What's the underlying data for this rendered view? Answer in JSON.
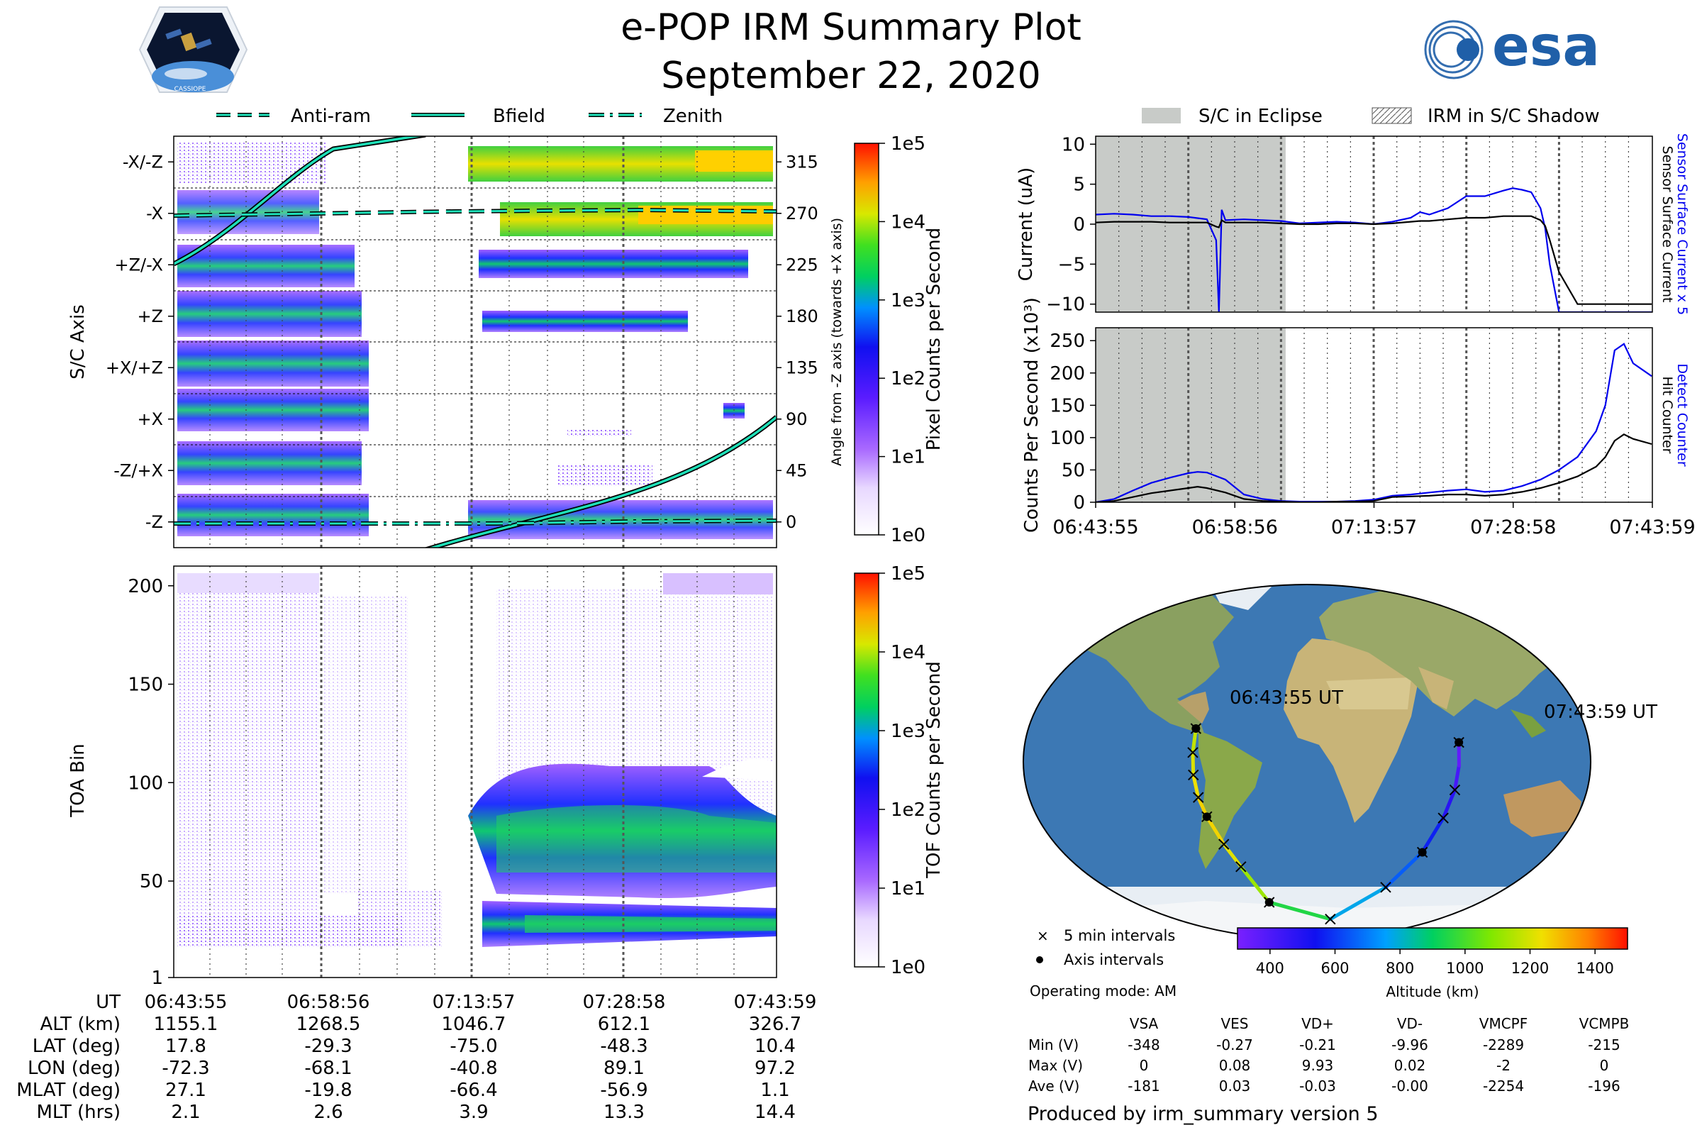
{
  "header": {
    "title": "e-POP IRM Summary Plot",
    "date": "September 22, 2020",
    "logo_left": "CASSIOPE",
    "logo_right": "esa"
  },
  "colors": {
    "teal": "#1ee0b8",
    "blue_trace": "#0000ee",
    "eclipse": "#c8cbc8"
  },
  "chart_data": [
    {
      "id": "sc-axis-spectrogram",
      "type": "heatmap",
      "ylabel": "S/C Axis",
      "ylabel_right": "Angle from -Z axis (towards +X axis)",
      "y_categories": [
        "-X/-Z",
        "-X",
        "+Z/-X",
        "+Z",
        "+X/+Z",
        "+X",
        "-Z/+X",
        "-Z"
      ],
      "y_right_ticks": [
        "315",
        "270",
        "225",
        "180",
        "135",
        "90",
        "45",
        "0"
      ],
      "x_tick_labels": [
        "06:43:55",
        "06:58:56",
        "07:13:57",
        "07:28:58",
        "07:43:59"
      ],
      "legend": [
        "Anti-ram",
        "Bfield",
        "Zenith"
      ],
      "colorbar": {
        "label": "Pixel Counts per Second",
        "ticks": [
          "1e5",
          "1e4",
          "1e3",
          "1e2",
          "1e1",
          "1e0"
        ],
        "scale": "log",
        "range": [
          1,
          100000
        ]
      }
    },
    {
      "id": "toa-spectrogram",
      "type": "heatmap",
      "ylabel": "TOA Bin",
      "y_ticks": [
        "200",
        "150",
        "100",
        "50",
        "1"
      ],
      "ylim": [
        1,
        210
      ],
      "colorbar": {
        "label": "TOF Counts per Second",
        "ticks": [
          "1e5",
          "1e4",
          "1e3",
          "1e2",
          "1e1",
          "1e0"
        ],
        "scale": "log",
        "range": [
          1,
          100000
        ]
      }
    },
    {
      "id": "current-plot",
      "type": "line",
      "ylabel": "Current (uA)",
      "y_ticks": [
        "10",
        "5",
        "0",
        "−5",
        "−10"
      ],
      "ylim": [
        -11,
        11
      ],
      "legend": [
        "S/C in Eclipse",
        "IRM in S/C Shadow"
      ],
      "right_label_blue": "Sensor Surface Current x 5",
      "right_label_black": "Sensor Surface Current",
      "eclipse_minutes": [
        0,
        20.5
      ],
      "x_minutes": [
        0,
        2,
        4,
        6,
        8,
        10,
        12,
        13,
        13.3,
        13.6,
        14,
        16,
        18,
        20,
        22,
        24,
        26,
        28,
        30,
        32,
        34,
        35,
        36,
        38,
        40,
        42,
        44,
        45,
        46,
        47,
        48,
        48.5,
        49,
        50,
        52,
        54,
        56,
        58,
        60
      ],
      "series": [
        {
          "name": "Sensor Surface Current x 5",
          "color": "#0000ee",
          "values": [
            1.2,
            1.3,
            1.2,
            1.0,
            1.0,
            0.9,
            0.6,
            -2.0,
            -11,
            1.8,
            0.5,
            0.6,
            0.5,
            0.4,
            0.1,
            0.2,
            0.3,
            0.2,
            0.0,
            0.3,
            0.8,
            1.5,
            1.2,
            2.0,
            3.5,
            3.5,
            4.2,
            4.5,
            4.3,
            4.0,
            2.0,
            -0.5,
            -5,
            -11,
            -11,
            -11,
            -11,
            -11,
            -11
          ]
        },
        {
          "name": "Sensor Surface Current",
          "color": "#000000",
          "values": [
            0.2,
            0.3,
            0.3,
            0.3,
            0.2,
            0.2,
            0.2,
            -0.3,
            -0.4,
            0.5,
            0.2,
            0.2,
            0.2,
            0.1,
            0.0,
            0.0,
            0.1,
            0.1,
            0.0,
            0.1,
            0.3,
            0.4,
            0.4,
            0.6,
            0.8,
            0.8,
            1.0,
            1.0,
            1.0,
            1.0,
            0.5,
            -0.2,
            -2.0,
            -6.0,
            -10,
            -10,
            -10,
            -10,
            -10
          ]
        }
      ]
    },
    {
      "id": "counts-plot",
      "type": "line",
      "ylabel": "Counts Per Second (x10³)",
      "y_ticks": [
        "250",
        "200",
        "150",
        "100",
        "50",
        "0"
      ],
      "ylim": [
        0,
        270
      ],
      "x_tick_labels": [
        "06:43:55",
        "06:58:56",
        "07:13:57",
        "07:28:58",
        "07:43:59"
      ],
      "right_label_blue": "Detect Counter",
      "right_label_black": "Hit Counter",
      "eclipse_minutes": [
        0,
        20.5
      ],
      "x_minutes": [
        0,
        2,
        4,
        6,
        8,
        10,
        11,
        12,
        14,
        16,
        18,
        20,
        22,
        24,
        26,
        28,
        30,
        32,
        34,
        36,
        38,
        40,
        42,
        44,
        46,
        48,
        50,
        52,
        54,
        55,
        56,
        57,
        58,
        60
      ],
      "series": [
        {
          "name": "Detect Counter",
          "color": "#0000ee",
          "values": [
            0,
            5,
            18,
            30,
            38,
            45,
            47,
            46,
            35,
            12,
            5,
            2,
            1,
            1,
            1,
            2,
            4,
            10,
            12,
            15,
            18,
            20,
            16,
            18,
            25,
            35,
            50,
            70,
            110,
            150,
            235,
            245,
            215,
            195
          ]
        },
        {
          "name": "Hit Counter",
          "color": "#000000",
          "values": [
            0,
            2,
            8,
            14,
            18,
            22,
            24,
            22,
            15,
            5,
            2,
            1,
            0,
            0,
            1,
            1,
            2,
            8,
            9,
            10,
            12,
            12,
            10,
            12,
            16,
            22,
            30,
            40,
            55,
            70,
            95,
            105,
            98,
            90
          ]
        }
      ]
    },
    {
      "id": "orbit-map",
      "type": "scatter",
      "start_label": "06:43:55 UT",
      "end_label": "07:43:59 UT",
      "legend": [
        "5 min intervals",
        "Axis intervals"
      ],
      "operating_mode": "Operating mode: AM",
      "colorbar": {
        "label": "Altitude (km)",
        "ticks": [
          "400",
          "600",
          "800",
          "1000",
          "1200",
          "1400"
        ],
        "range": [
          300,
          1500
        ]
      },
      "track": [
        {
          "lon": -72.3,
          "lat": 17.8,
          "alt": 1155
        },
        {
          "lon": -72.6,
          "lat": 5,
          "alt": 1190
        },
        {
          "lon": -72.4,
          "lat": -7,
          "alt": 1220
        },
        {
          "lon": -71.0,
          "lat": -19,
          "alt": 1250
        },
        {
          "lon": -68.1,
          "lat": -29.3,
          "alt": 1268
        },
        {
          "lon": -62,
          "lat": -44,
          "alt": 1240
        },
        {
          "lon": -55,
          "lat": -56,
          "alt": 1190
        },
        {
          "lon": -40.8,
          "lat": -75,
          "alt": 1047
        },
        {
          "lon": 30,
          "lat": -84,
          "alt": 850
        },
        {
          "lon": 75,
          "lat": -67,
          "alt": 700
        },
        {
          "lon": 89.1,
          "lat": -48.3,
          "alt": 612
        },
        {
          "lon": 93,
          "lat": -30,
          "alt": 520
        },
        {
          "lon": 95.5,
          "lat": -15,
          "alt": 450
        },
        {
          "lon": 96.5,
          "lat": -2,
          "alt": 380
        },
        {
          "lon": 97.2,
          "lat": 10.4,
          "alt": 327
        }
      ],
      "five_min_marks": [
        {
          "lon": -72.3,
          "lat": 17.8
        },
        {
          "lon": -72.6,
          "lat": 5
        },
        {
          "lon": -72.4,
          "lat": -7
        },
        {
          "lon": -71.0,
          "lat": -19
        },
        {
          "lon": -68.1,
          "lat": -29.3
        },
        {
          "lon": -62,
          "lat": -44
        },
        {
          "lon": -55,
          "lat": -56
        },
        {
          "lon": -40.8,
          "lat": -75
        },
        {
          "lon": 30,
          "lat": -84
        },
        {
          "lon": 75,
          "lat": -67
        },
        {
          "lon": 89.1,
          "lat": -48.3
        },
        {
          "lon": 93,
          "lat": -30
        },
        {
          "lon": 95.5,
          "lat": -15
        },
        {
          "lon": 97.2,
          "lat": 10.4
        }
      ],
      "axis_marks": [
        {
          "lon": -72.3,
          "lat": 17.8
        },
        {
          "lon": -68.1,
          "lat": -29.3
        },
        {
          "lon": -40.8,
          "lat": -75
        },
        {
          "lon": 89.1,
          "lat": -48.3
        },
        {
          "lon": 97.2,
          "lat": 10.4
        }
      ]
    }
  ],
  "ephemeris": {
    "labels": [
      "UT",
      "ALT (km)",
      "LAT (deg)",
      "LON (deg)",
      "MLAT (deg)",
      "MLT (hrs)"
    ],
    "columns": [
      [
        "06:43:55",
        "1155.1",
        "17.8",
        "-72.3",
        "27.1",
        "2.1"
      ],
      [
        "06:58:56",
        "1268.5",
        "-29.3",
        "-68.1",
        "-19.8",
        "2.6"
      ],
      [
        "07:13:57",
        "1046.7",
        "-75.0",
        "-40.8",
        "-66.4",
        "3.9"
      ],
      [
        "07:28:58",
        "612.1",
        "-48.3",
        "89.1",
        "-56.9",
        "13.3"
      ],
      [
        "07:43:59",
        "326.7",
        "10.4",
        "97.2",
        "1.1",
        "14.4"
      ]
    ]
  },
  "voltage_table": {
    "headers": [
      "VSA",
      "VES",
      "VD+",
      "VD-",
      "VMCPF",
      "VCMPB"
    ],
    "rows": [
      {
        "label": "Min (V)",
        "values": [
          "-348",
          "-0.27",
          "-0.21",
          "-9.96",
          "-2289",
          "-215"
        ]
      },
      {
        "label": "Max (V)",
        "values": [
          "0",
          "0.08",
          "9.93",
          "0.02",
          "-2",
          "0"
        ]
      },
      {
        "label": "Ave (V)",
        "values": [
          "-181",
          "0.03",
          "-0.03",
          "-0.00",
          "-2254",
          "-196"
        ]
      }
    ]
  },
  "footer": "Produced by irm_summary version 5"
}
